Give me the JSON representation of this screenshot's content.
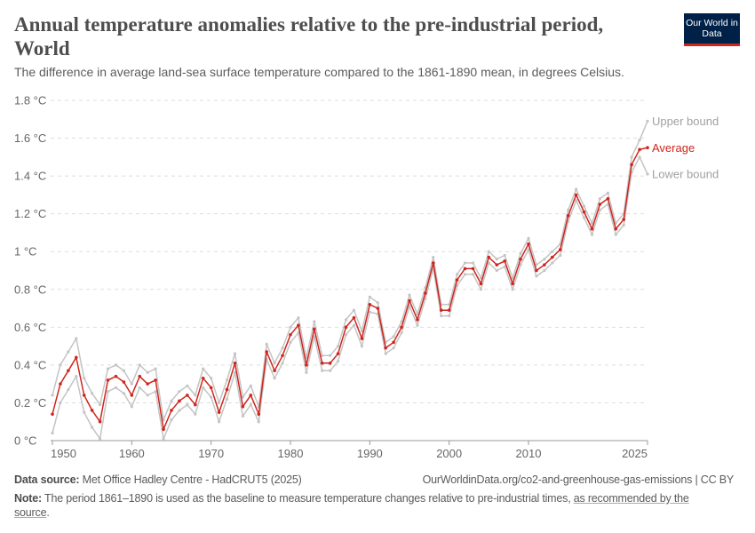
{
  "header": {
    "title": "Annual temperature anomalies relative to the pre-industrial period, World",
    "subtitle": "The difference in average land-sea surface temperature compared to the 1861-1890 mean, in degrees Celsius.",
    "logo": "Our World in Data"
  },
  "chart_data": {
    "type": "line",
    "title": "Annual temperature anomalies relative to the pre-industrial period, World",
    "ylim": [
      0,
      1.8
    ],
    "yticks": [
      "0 °C",
      "0.2 °C",
      "0.4 °C",
      "0.6 °C",
      "0.8 °C",
      "1 °C",
      "1.2 °C",
      "1.4 °C",
      "1.6 °C",
      "1.8 °C"
    ],
    "xticks": [
      "1950",
      "1960",
      "1970",
      "1980",
      "1990",
      "2000",
      "2010",
      "2025"
    ],
    "grid": true,
    "legend": "right-end-labels",
    "x": [
      1950,
      1951,
      1952,
      1953,
      1954,
      1955,
      1956,
      1957,
      1958,
      1959,
      1960,
      1961,
      1962,
      1963,
      1964,
      1965,
      1966,
      1967,
      1968,
      1969,
      1970,
      1971,
      1972,
      1973,
      1974,
      1975,
      1976,
      1977,
      1978,
      1979,
      1980,
      1981,
      1982,
      1983,
      1984,
      1985,
      1986,
      1987,
      1988,
      1989,
      1990,
      1991,
      1992,
      1993,
      1994,
      1995,
      1996,
      1997,
      1998,
      1999,
      2000,
      2001,
      2002,
      2003,
      2004,
      2005,
      2006,
      2007,
      2008,
      2009,
      2010,
      2011,
      2012,
      2013,
      2014,
      2015,
      2016,
      2017,
      2018,
      2019,
      2020,
      2021,
      2022,
      2023,
      2024,
      2025
    ],
    "series": [
      {
        "name": "Upper bound",
        "color": "#c4c4c4",
        "values": [
          0.24,
          0.4,
          0.47,
          0.54,
          0.33,
          0.25,
          0.19,
          0.38,
          0.4,
          0.37,
          0.3,
          0.4,
          0.36,
          0.38,
          0.11,
          0.21,
          0.26,
          0.29,
          0.24,
          0.38,
          0.33,
          0.2,
          0.32,
          0.46,
          0.23,
          0.29,
          0.18,
          0.51,
          0.41,
          0.49,
          0.6,
          0.65,
          0.44,
          0.63,
          0.45,
          0.45,
          0.5,
          0.64,
          0.69,
          0.58,
          0.76,
          0.73,
          0.52,
          0.55,
          0.63,
          0.77,
          0.67,
          0.81,
          0.97,
          0.72,
          0.72,
          0.88,
          0.94,
          0.94,
          0.86,
          1.0,
          0.96,
          0.98,
          0.86,
          0.99,
          1.07,
          0.93,
          0.96,
          1.0,
          1.04,
          1.22,
          1.33,
          1.24,
          1.15,
          1.28,
          1.31,
          1.15,
          1.2,
          1.5,
          1.59,
          1.69
        ]
      },
      {
        "name": "Average",
        "color": "#ce261e",
        "values": [
          0.14,
          0.3,
          0.37,
          0.44,
          0.24,
          0.16,
          0.1,
          0.32,
          0.34,
          0.31,
          0.24,
          0.34,
          0.3,
          0.32,
          0.06,
          0.16,
          0.21,
          0.24,
          0.19,
          0.33,
          0.28,
          0.15,
          0.27,
          0.41,
          0.18,
          0.24,
          0.14,
          0.47,
          0.37,
          0.45,
          0.56,
          0.61,
          0.4,
          0.59,
          0.41,
          0.41,
          0.46,
          0.6,
          0.65,
          0.54,
          0.72,
          0.7,
          0.49,
          0.52,
          0.6,
          0.74,
          0.64,
          0.78,
          0.94,
          0.69,
          0.69,
          0.85,
          0.91,
          0.91,
          0.83,
          0.97,
          0.93,
          0.95,
          0.83,
          0.96,
          1.04,
          0.9,
          0.93,
          0.97,
          1.01,
          1.19,
          1.3,
          1.21,
          1.12,
          1.25,
          1.28,
          1.12,
          1.17,
          1.46,
          1.54,
          1.55
        ]
      },
      {
        "name": "Lower bound",
        "color": "#c4c4c4",
        "values": [
          0.04,
          0.2,
          0.27,
          0.34,
          0.15,
          0.07,
          0.01,
          0.26,
          0.28,
          0.25,
          0.18,
          0.28,
          0.24,
          0.26,
          0.01,
          0.11,
          0.16,
          0.19,
          0.14,
          0.28,
          0.23,
          0.1,
          0.22,
          0.36,
          0.13,
          0.19,
          0.1,
          0.43,
          0.33,
          0.41,
          0.52,
          0.57,
          0.36,
          0.55,
          0.37,
          0.37,
          0.42,
          0.56,
          0.61,
          0.5,
          0.68,
          0.67,
          0.46,
          0.49,
          0.57,
          0.71,
          0.61,
          0.75,
          0.91,
          0.66,
          0.66,
          0.82,
          0.88,
          0.88,
          0.8,
          0.94,
          0.9,
          0.92,
          0.8,
          0.93,
          1.01,
          0.87,
          0.9,
          0.94,
          0.98,
          1.16,
          1.27,
          1.18,
          1.09,
          1.22,
          1.25,
          1.09,
          1.14,
          1.42,
          1.5,
          1.41
        ]
      }
    ]
  },
  "footer": {
    "source_label": "Data source:",
    "source_text": "Met Office Hadley Centre - HadCRUT5 (2025)",
    "url": "OurWorldinData.org/co2-and-greenhouse-gas-emissions | CC BY",
    "note_label": "Note:",
    "note_text": "The period 1861–1890 is used as the baseline to measure temperature changes relative to pre-industrial times, ",
    "note_link": "as recommended by the source",
    "note_end": "."
  }
}
